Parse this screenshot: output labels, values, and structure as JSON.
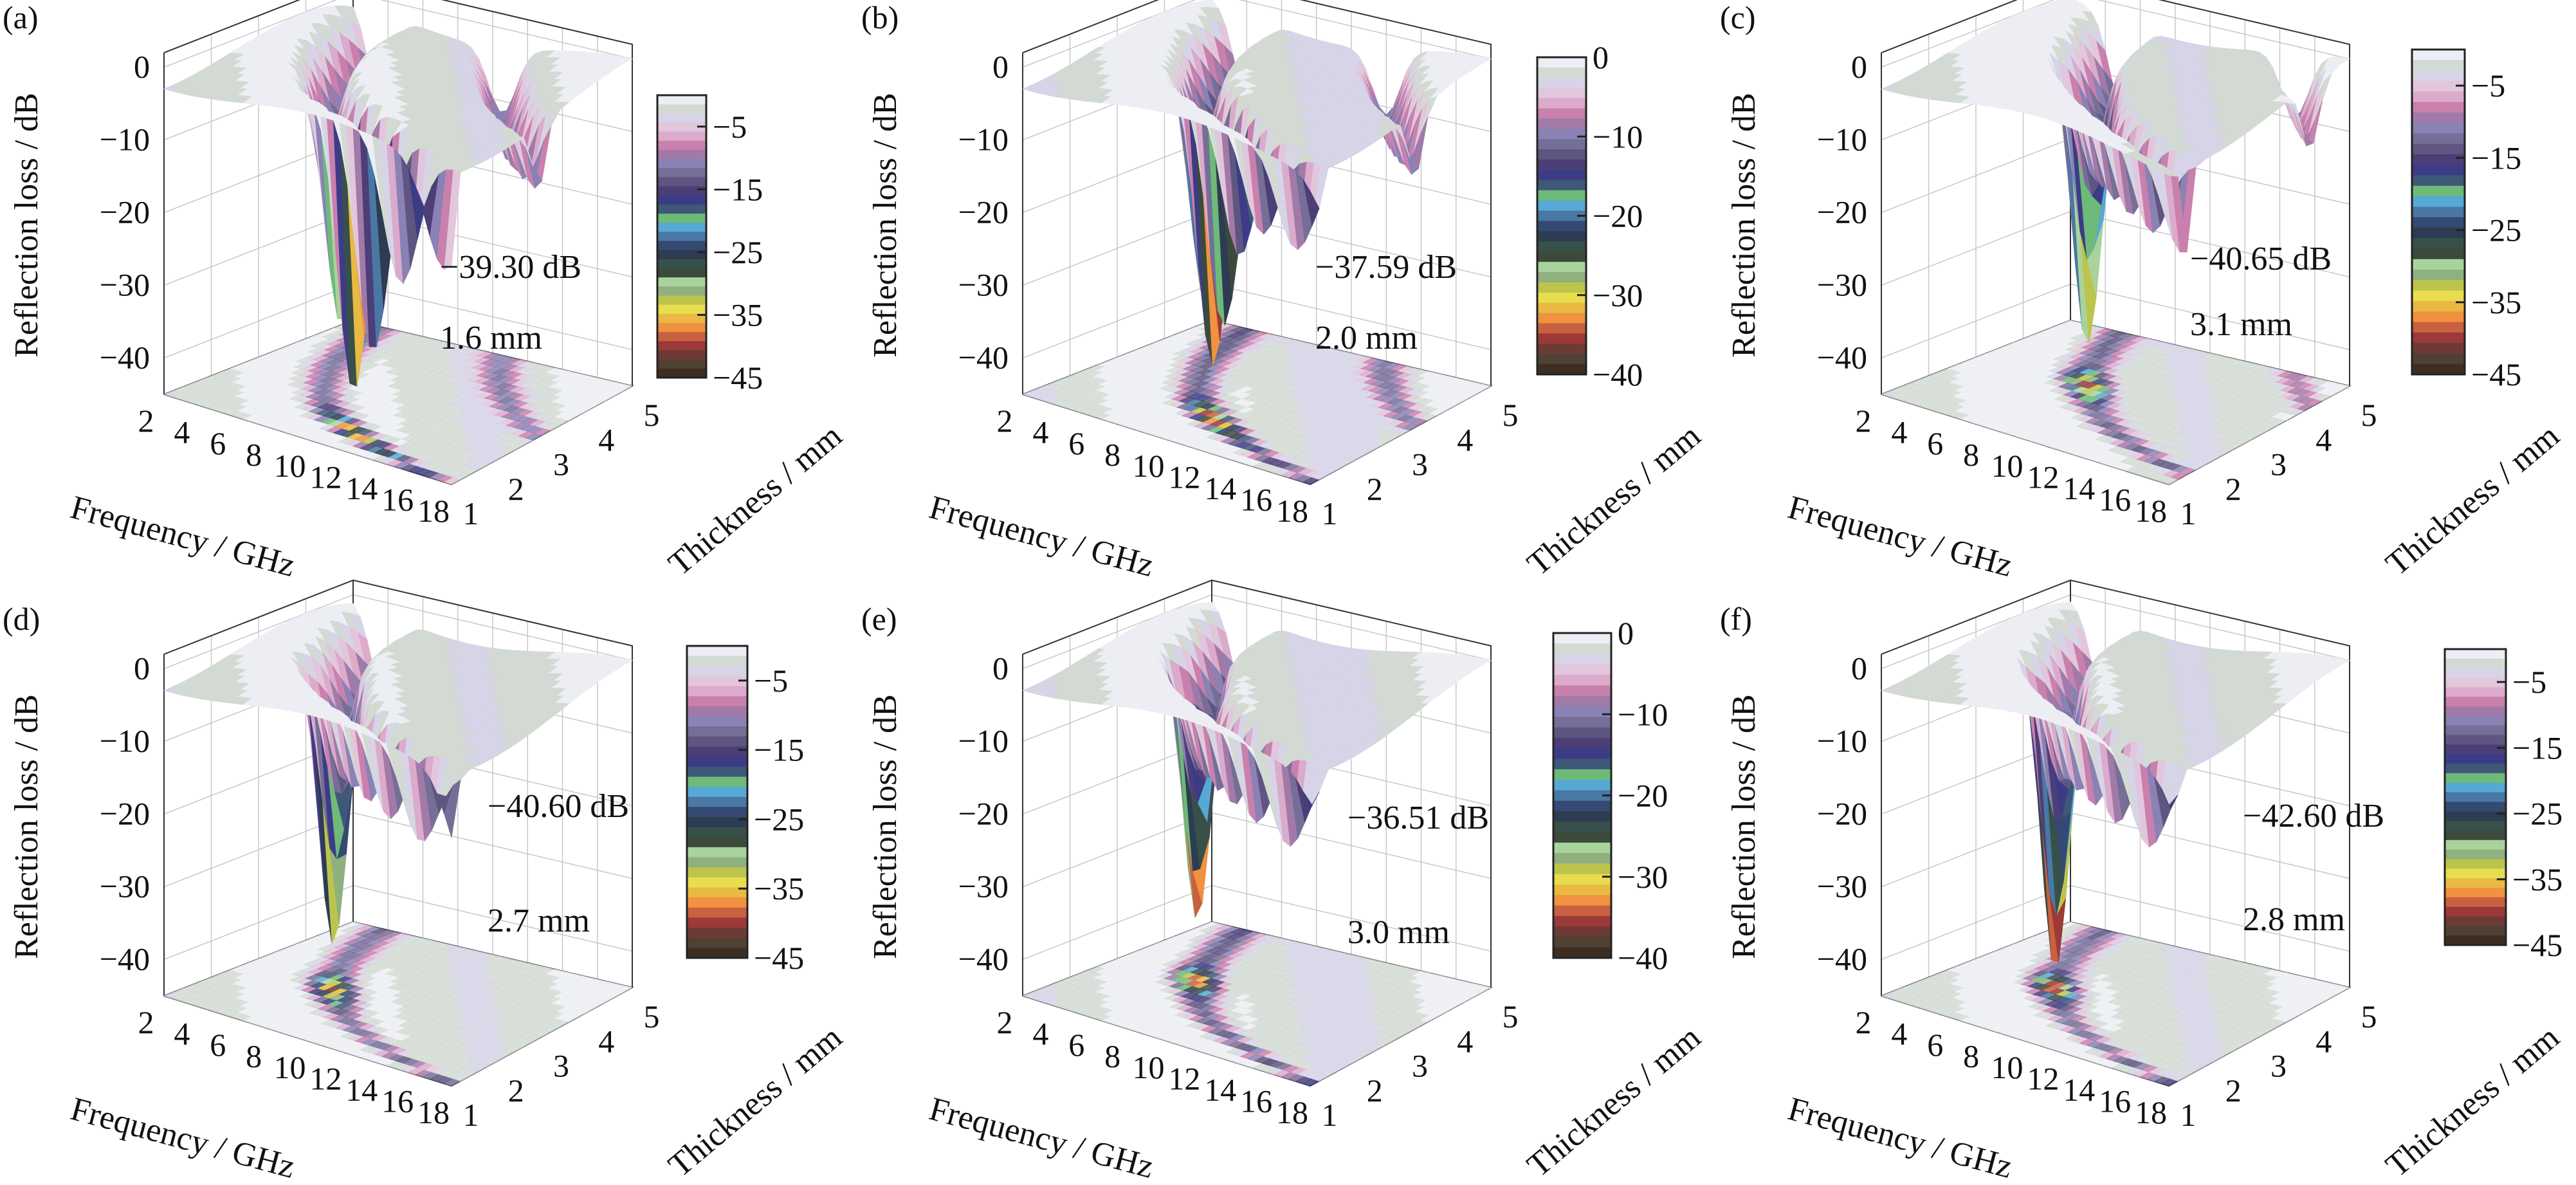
{
  "figure": {
    "common": {
      "zlabel": "Reflection loss / dB",
      "xlabel": "Frequency / GHz",
      "ylabel": "Thickness / mm",
      "x_ticks": [
        "2",
        "4",
        "6",
        "8",
        "10",
        "12",
        "14",
        "16",
        "18"
      ],
      "y_ticks": [
        "1",
        "2",
        "3",
        "4",
        "5"
      ],
      "z_ticks": [
        "0",
        "−10",
        "−20",
        "−30",
        "−40"
      ]
    }
  },
  "chart_data": [
    {
      "type": "surface",
      "title": "(a)",
      "xlabel": "Frequency / GHz",
      "ylabel": "Thickness / mm",
      "zlabel": "Reflection loss / dB",
      "xlim": [
        2,
        18
      ],
      "ylim": [
        1,
        5
      ],
      "zlim": [
        -45,
        0
      ],
      "min_rl_label": "−39.30 dB",
      "min_thickness_label": "1.6 mm",
      "min_rl_db": -39.3,
      "min_thickness_mm": 1.6,
      "colorbar": {
        "range": [
          -45,
          0
        ],
        "ticks": [
          "−5",
          "−15",
          "−25",
          "−35",
          "−45"
        ]
      }
    },
    {
      "type": "surface",
      "title": "(b)",
      "xlabel": "Frequency / GHz",
      "ylabel": "Thickness / mm",
      "zlabel": "Reflection loss / dB",
      "xlim": [
        2,
        18
      ],
      "ylim": [
        1,
        5
      ],
      "zlim": [
        -45,
        0
      ],
      "min_rl_label": "−37.59 dB",
      "min_thickness_label": "2.0 mm",
      "min_rl_db": -37.59,
      "min_thickness_mm": 2.0,
      "colorbar": {
        "range": [
          -40,
          0
        ],
        "ticks": [
          "0",
          "−10",
          "−20",
          "−30",
          "−40"
        ]
      }
    },
    {
      "type": "surface",
      "title": "(c)",
      "xlabel": "Frequency / GHz",
      "ylabel": "Thickness / mm",
      "zlabel": "Reflection loss / dB",
      "xlim": [
        2,
        18
      ],
      "ylim": [
        1,
        5
      ],
      "zlim": [
        -45,
        0
      ],
      "min_rl_label": "−40.65 dB",
      "min_thickness_label": "3.1 mm",
      "min_rl_db": -40.65,
      "min_thickness_mm": 3.1,
      "colorbar": {
        "range": [
          -45,
          0
        ],
        "ticks": [
          "−5",
          "−15",
          "−25",
          "−35",
          "−45"
        ]
      }
    },
    {
      "type": "surface",
      "title": "(d)",
      "xlabel": "Frequency / GHz",
      "ylabel": "Thickness / mm",
      "zlabel": "Reflection loss / dB",
      "xlim": [
        2,
        18
      ],
      "ylim": [
        1,
        5
      ],
      "zlim": [
        -45,
        0
      ],
      "min_rl_label": "−40.60 dB",
      "min_thickness_label": "2.7 mm",
      "min_rl_db": -40.6,
      "min_thickness_mm": 2.7,
      "colorbar": {
        "range": [
          -45,
          0
        ],
        "ticks": [
          "−5",
          "−15",
          "−25",
          "−35",
          "−45"
        ]
      }
    },
    {
      "type": "surface",
      "title": "(e)",
      "xlabel": "Frequency / GHz",
      "ylabel": "Thickness / mm",
      "zlabel": "Reflection loss / dB",
      "xlim": [
        2,
        18
      ],
      "ylim": [
        1,
        5
      ],
      "zlim": [
        -45,
        0
      ],
      "min_rl_label": "−36.51 dB",
      "min_thickness_label": "3.0 mm",
      "min_rl_db": -36.51,
      "min_thickness_mm": 3.0,
      "colorbar": {
        "range": [
          -40,
          0
        ],
        "ticks": [
          "0",
          "−10",
          "−20",
          "−30",
          "−40"
        ]
      }
    },
    {
      "type": "surface",
      "title": "(f)",
      "xlabel": "Frequency / GHz",
      "ylabel": "Thickness / mm",
      "zlabel": "Reflection loss / dB",
      "xlim": [
        2,
        18
      ],
      "ylim": [
        1,
        5
      ],
      "zlim": [
        -45,
        0
      ],
      "min_rl_label": "−42.60 dB",
      "min_thickness_label": "2.8 mm",
      "min_rl_db": -42.6,
      "min_thickness_mm": 2.8,
      "colorbar": {
        "range": [
          -45,
          0
        ],
        "ticks": [
          "−5",
          "−15",
          "−25",
          "−35",
          "−45"
        ]
      }
    }
  ]
}
